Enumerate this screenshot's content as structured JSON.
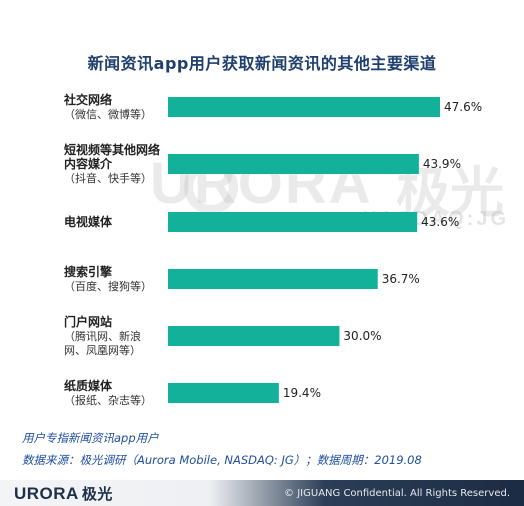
{
  "title": "新闻资讯app用户获取新闻资讯的其他主要渠道",
  "watermark": {
    "main": "URORA",
    "cn": "极光",
    "sub": "NASDAQ:JG"
  },
  "colors": {
    "bar": "#13b09a",
    "title": "#1f3f6e",
    "note": "#1f4fa0"
  },
  "chart_data": {
    "type": "bar",
    "orientation": "horizontal",
    "title": "新闻资讯app用户获取新闻资讯的其他主要渠道",
    "categories": [
      {
        "lines": [
          "社交网络"
        ],
        "sub": [
          "（微信、微博等）"
        ]
      },
      {
        "lines": [
          "短视频等其他网络",
          "内容媒介"
        ],
        "sub": [
          "（抖音、快手等）"
        ]
      },
      {
        "lines": [
          "电视媒体"
        ],
        "sub": []
      },
      {
        "lines": [
          "搜索引擎"
        ],
        "sub": [
          "（百度、搜狗等）"
        ]
      },
      {
        "lines": [
          "门户网站"
        ],
        "sub": [
          "（腾讯网、新浪",
          "网、凤凰网等）"
        ]
      },
      {
        "lines": [
          "纸质媒体"
        ],
        "sub": [
          "（报纸、杂志等）"
        ]
      }
    ],
    "values": [
      47.6,
      43.9,
      43.6,
      36.7,
      30.0,
      19.4
    ],
    "value_labels": [
      "47.6%",
      "43.9%",
      "43.6%",
      "36.7%",
      "30.0%",
      "19.4%"
    ],
    "unit": "%",
    "xlim": [
      0,
      50
    ],
    "grid": false,
    "legend": "none"
  },
  "notes": {
    "line1": "用户专指新闻资讯app用户",
    "line2": "数据来源：极光调研（Aurora Mobile, NASDAQ: JG）；数据周期：2019.08"
  },
  "footer": {
    "logo": "URORA",
    "logo_cn": "极光",
    "copyright": "© JIGUANG Confidential. All Rights Reserved."
  }
}
